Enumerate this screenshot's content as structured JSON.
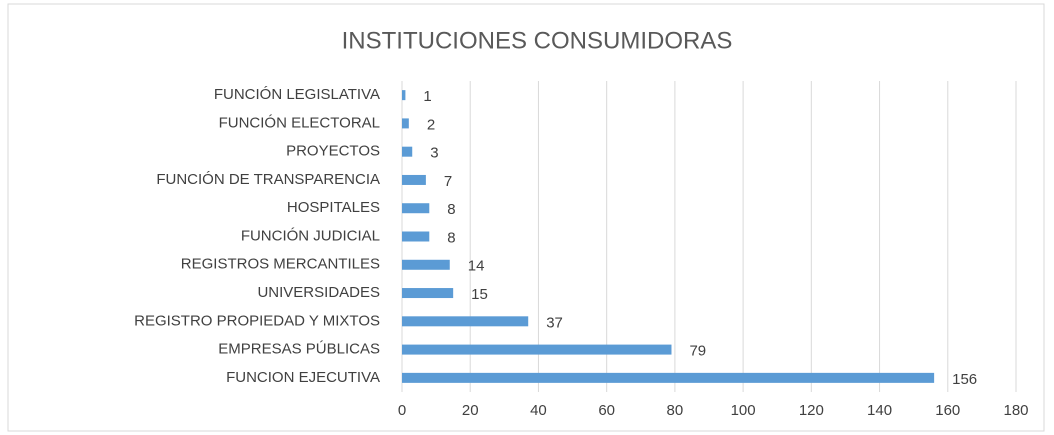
{
  "chart_data": {
    "type": "bar",
    "orientation": "horizontal",
    "title": "INSTITUCIONES CONSUMIDORAS",
    "categories": [
      "FUNCIÓN LEGISLATIVA",
      "FUNCIÓN ELECTORAL",
      "PROYECTOS",
      "FUNCIÓN DE TRANSPARENCIA",
      "HOSPITALES",
      "FUNCIÓN JUDICIAL",
      "REGISTROS MERCANTILES",
      "UNIVERSIDADES",
      "REGISTRO PROPIEDAD Y MIXTOS",
      "EMPRESAS PÚBLICAS",
      "FUNCION EJECUTIVA"
    ],
    "values": [
      1,
      2,
      3,
      7,
      8,
      8,
      14,
      15,
      37,
      79,
      156
    ],
    "color": "#5b9bd5",
    "xlim": [
      0,
      180
    ],
    "xticks": [
      0,
      20,
      40,
      60,
      80,
      100,
      120,
      140,
      160,
      180
    ],
    "grid": true
  }
}
